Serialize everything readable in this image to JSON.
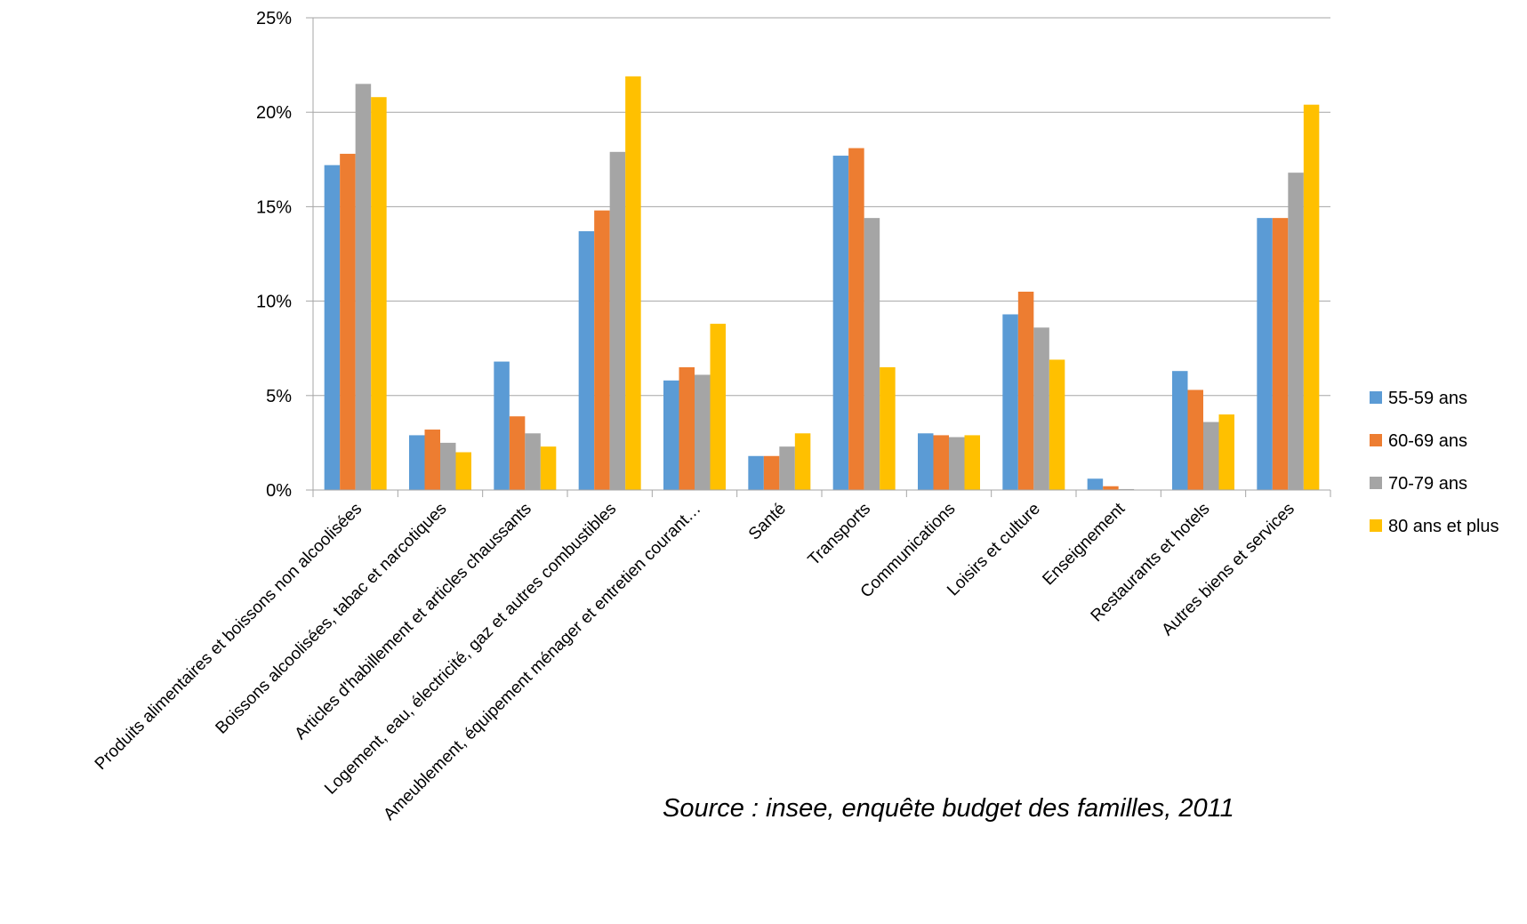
{
  "chart_data": {
    "type": "bar",
    "categories": [
      "Produits alimentaires et boissons non alcoolisées",
      "Boissons alcoolisées, tabac et narcotiques",
      "Articles d'habillement et articles chaussants",
      "Logement, eau, électricité, gaz et autres combustibles",
      "Ameublement, équipement ménager et entretien courant…",
      "Santé",
      "Transports",
      "Communications",
      "Loisirs et culture",
      "Enseignement",
      "Restaurants et hotels",
      "Autres biens et services"
    ],
    "series": [
      {
        "name": "55-59 ans",
        "color": "#5B9BD5",
        "values": [
          17.2,
          2.9,
          6.8,
          13.7,
          5.8,
          1.8,
          17.7,
          3.0,
          9.3,
          0.6,
          6.3,
          14.4
        ]
      },
      {
        "name": "60-69 ans",
        "color": "#ED7D31",
        "values": [
          17.8,
          3.2,
          3.9,
          14.8,
          6.5,
          1.8,
          18.1,
          2.9,
          10.5,
          0.2,
          5.3,
          14.4
        ]
      },
      {
        "name": "70-79 ans",
        "color": "#A5A5A5",
        "values": [
          21.5,
          2.5,
          3.0,
          17.9,
          6.1,
          2.3,
          14.4,
          2.8,
          8.6,
          0.05,
          3.6,
          16.8
        ]
      },
      {
        "name": "80 ans et plus",
        "color": "#FFC000",
        "values": [
          20.8,
          2.0,
          2.3,
          21.9,
          8.8,
          3.0,
          6.5,
          2.9,
          6.9,
          0.0,
          4.0,
          20.4
        ]
      }
    ],
    "y_ticks": [
      "0%",
      "5%",
      "10%",
      "15%",
      "20%",
      "25%"
    ],
    "ylim": [
      0,
      25
    ],
    "grid": true,
    "legend_position": "right"
  },
  "source_note": "Source : insee, enquête budget des familles, 2011"
}
